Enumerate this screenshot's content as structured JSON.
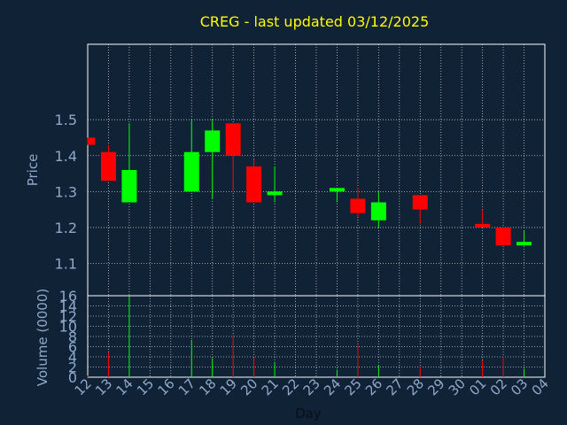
{
  "chart_data": {
    "type": "candlestick",
    "title": "CREG - last updated 03/12/2025",
    "xlabel": "Day",
    "ylabel": "Price",
    "volume_label": "Volume (0000)",
    "x_ticks": [
      "12",
      "13",
      "14",
      "15",
      "16",
      "17",
      "18",
      "19",
      "20",
      "21",
      "22",
      "23",
      "24",
      "25",
      "26",
      "27",
      "28",
      "29",
      "30",
      "01",
      "02",
      "03",
      "04"
    ],
    "price_ticks": [
      "1.1",
      "1.2",
      "1.3",
      "1.4",
      "1.5"
    ],
    "volume_ticks": [
      "0",
      "2",
      "4",
      "6",
      "8",
      "10",
      "12",
      "14",
      "16"
    ],
    "price_range": [
      1.01,
      1.71
    ],
    "volume_range": [
      0,
      16
    ],
    "grid": true,
    "colors": {
      "up": "#00ff00",
      "down": "#ff0000",
      "background": "#0f2236",
      "title": "#ffff00",
      "axis_text": "#8fa9c9",
      "grid": "#c8c8c8"
    },
    "candles": [
      {
        "day": "12",
        "open": 1.45,
        "high": 1.45,
        "low": 1.43,
        "close": 1.43,
        "volume": 0.3
      },
      {
        "day": "13",
        "open": 1.41,
        "high": 1.43,
        "low": 1.33,
        "close": 1.33,
        "volume": 4.8
      },
      {
        "day": "14",
        "open": 1.27,
        "high": 1.49,
        "low": 1.27,
        "close": 1.36,
        "volume": 15.8
      },
      {
        "day": "17",
        "open": 1.3,
        "high": 1.5,
        "low": 1.3,
        "close": 1.41,
        "volume": 7.3
      },
      {
        "day": "18",
        "open": 1.41,
        "high": 1.5,
        "low": 1.28,
        "close": 1.47,
        "volume": 3.7
      },
      {
        "day": "19",
        "open": 1.49,
        "high": 1.49,
        "low": 1.3,
        "close": 1.4,
        "volume": 8.3
      },
      {
        "day": "20",
        "open": 1.37,
        "high": 1.39,
        "low": 1.27,
        "close": 1.27,
        "volume": 3.9
      },
      {
        "day": "21",
        "open": 1.29,
        "high": 1.37,
        "low": 1.27,
        "close": 1.3,
        "volume": 3.0
      },
      {
        "day": "24",
        "open": 1.3,
        "high": 1.31,
        "low": 1.27,
        "close": 1.31,
        "volume": 1.5
      },
      {
        "day": "25",
        "open": 1.28,
        "high": 1.31,
        "low": 1.23,
        "close": 1.24,
        "volume": 6.3
      },
      {
        "day": "26",
        "open": 1.22,
        "high": 1.3,
        "low": 1.2,
        "close": 1.27,
        "volume": 2.3
      },
      {
        "day": "28",
        "open": 1.29,
        "high": 1.29,
        "low": 1.21,
        "close": 1.25,
        "volume": 2.0
      },
      {
        "day": "01",
        "open": 1.21,
        "high": 1.25,
        "low": 1.2,
        "close": 1.2,
        "volume": 3.3
      },
      {
        "day": "02",
        "open": 1.2,
        "high": 1.2,
        "low": 1.15,
        "close": 1.15,
        "volume": 4.0
      },
      {
        "day": "03",
        "open": 1.15,
        "high": 1.19,
        "low": 1.15,
        "close": 1.16,
        "volume": 1.6
      }
    ]
  }
}
